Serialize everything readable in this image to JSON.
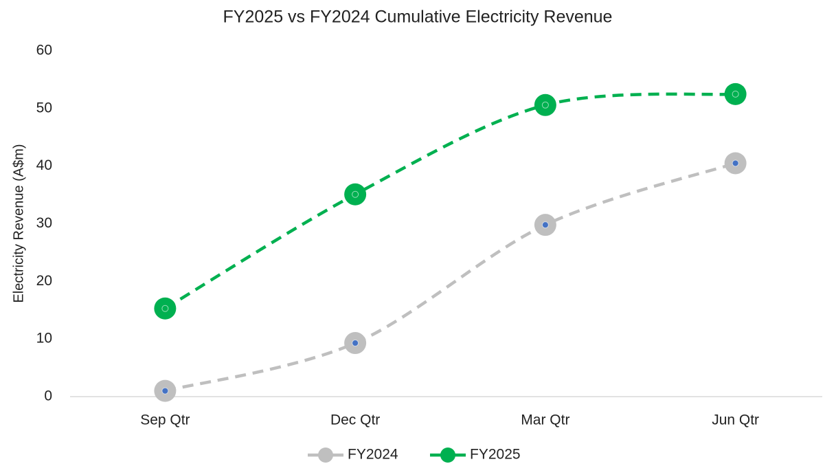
{
  "chart_data": {
    "type": "line",
    "title": "FY2025 vs FY2024 Cumulative Electricity Revenue",
    "y_label": "Electricity Revenue (A$m)",
    "categories": [
      "Sep Qtr",
      "Dec Qtr",
      "Mar Qtr",
      "Jun Qtr"
    ],
    "series": [
      {
        "name": "FY2024",
        "color": "#bfbfbf",
        "marker_center": "#4472c4",
        "values": [
          1.0,
          9.3,
          29.8,
          40.5
        ]
      },
      {
        "name": "FY2025",
        "color": "#00b050",
        "marker_center": "#00b050",
        "values": [
          15.3,
          35.1,
          50.6,
          52.5
        ]
      }
    ],
    "ylim": [
      0,
      60
    ],
    "yticks": [
      0,
      10,
      20,
      30,
      40,
      50,
      60
    ],
    "grid": false,
    "legend": "bottom"
  }
}
